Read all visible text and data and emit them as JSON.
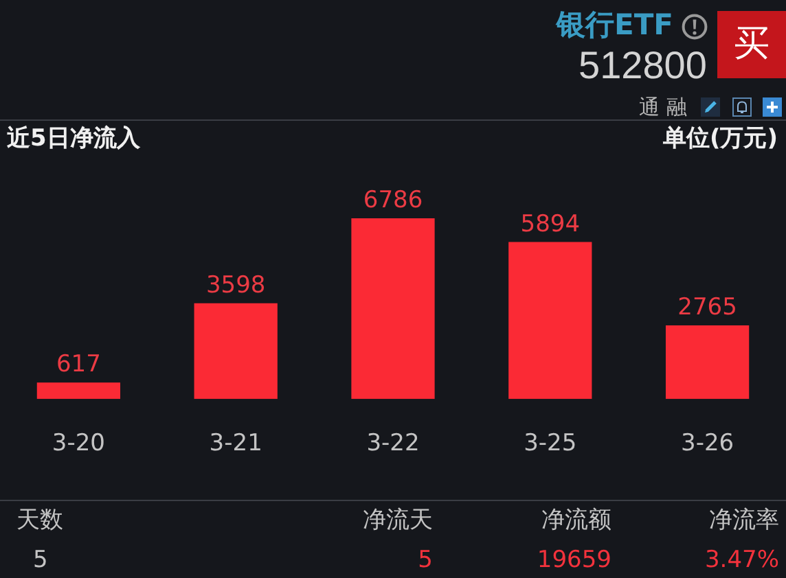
{
  "chart_data": {
    "type": "bar",
    "title": "近5日净流入",
    "ylabel": "单位(万元)",
    "categories": [
      "3-20",
      "3-21",
      "3-22",
      "3-25",
      "3-26"
    ],
    "values": [
      617,
      3598,
      6786,
      5894,
      2765
    ],
    "color": "#fb2a35",
    "data_labels": true,
    "tick_labels": "x",
    "annotations": [
      "银行ETF",
      "512800",
      "买",
      "通",
      "融",
      "天数",
      "5",
      "净流天",
      "5",
      "净流额",
      "19659",
      "净流率",
      "3.47%"
    ]
  }
}
